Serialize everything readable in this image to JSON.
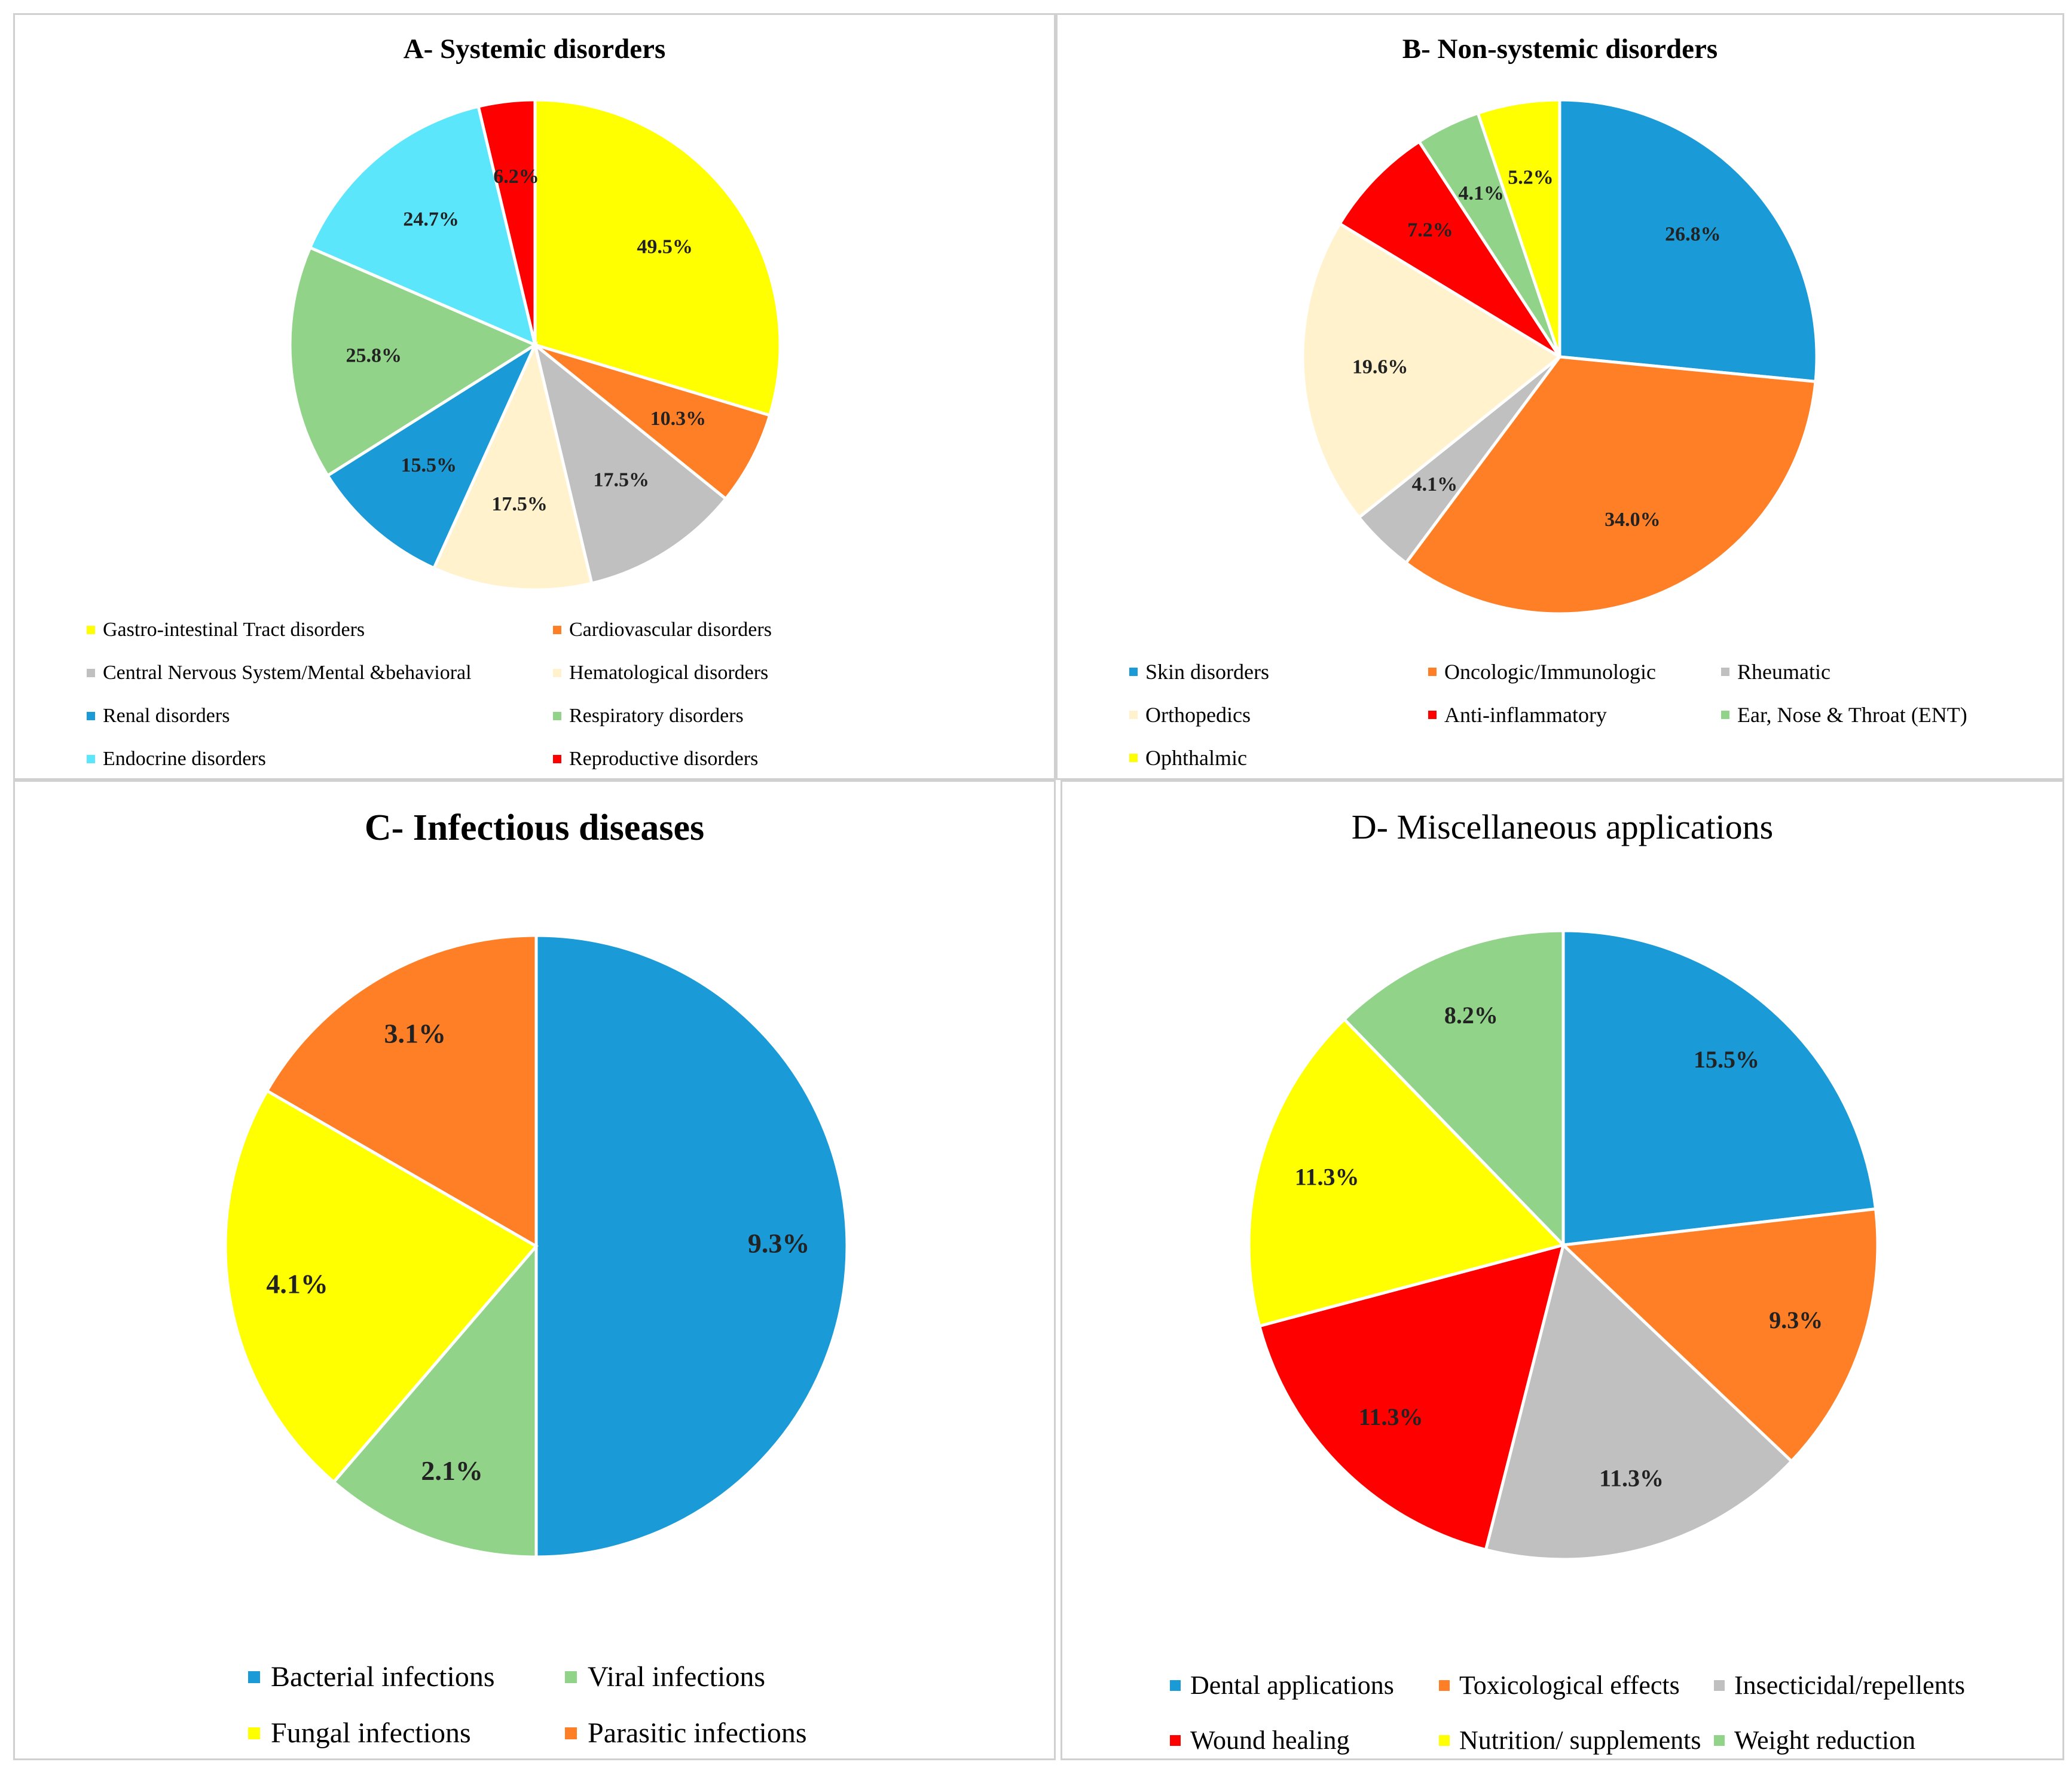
{
  "chart_data": [
    {
      "type": "pie",
      "title": "A- Systemic disorders",
      "legend_placement": "bottom",
      "categories": [
        "Gastro-intestinal Tract disorders",
        "Cardiovascular disorders",
        "Central Nervous System/Mental &behavioral",
        "Hematological disorders",
        "Renal disorders",
        "Respiratory disorders",
        "Endocrine disorders",
        "Reproductive disorders"
      ],
      "values": [
        49.5,
        10.3,
        17.5,
        17.5,
        15.5,
        25.8,
        24.7,
        6.2
      ],
      "labels": [
        "49.5%",
        "10.3%",
        "17.5%",
        "17.5%",
        "15.5%",
        "25.8%",
        "24.7%",
        "6.2%"
      ],
      "colors": [
        "#ffff00",
        "#ff7f27",
        "#c0c0c0",
        "#fff2cc",
        "#1a9ad6",
        "#92d38a",
        "#5ce6fb",
        "#ff0000"
      ]
    },
    {
      "type": "pie",
      "title": "B- Non-systemic disorders",
      "legend_placement": "bottom",
      "categories": [
        "Skin disorders",
        "Oncologic/Immunologic",
        "Rheumatic",
        "Orthopedics",
        "Anti-inflammatory",
        "Ear, Nose & Throat (ENT)",
        "Ophthalmic"
      ],
      "values": [
        26.8,
        34.0,
        4.1,
        19.6,
        7.2,
        4.1,
        5.2
      ],
      "labels": [
        "26.8%",
        "34.0%",
        "4.1%",
        "19.6%",
        "7.2%",
        "4.1%",
        "5.2%"
      ],
      "colors": [
        "#1a9ad6",
        "#ff7f27",
        "#c0c0c0",
        "#fff2cc",
        "#ff0000",
        "#92d38a",
        "#ffff00"
      ]
    },
    {
      "type": "pie",
      "title": "C- Infectious diseases",
      "legend_placement": "bottom",
      "categories": [
        "Bacterial infections",
        "Viral infections",
        "Fungal infections",
        "Parasitic infections"
      ],
      "values": [
        9.3,
        2.1,
        4.1,
        3.1
      ],
      "labels": [
        "9.3%",
        "2.1%",
        "4.1%",
        "3.1%"
      ],
      "colors": [
        "#1a9ad6",
        "#92d38a",
        "#ffff00",
        "#ff7f27"
      ]
    },
    {
      "type": "pie",
      "title": "D- Miscellaneous  applications",
      "legend_placement": "bottom",
      "categories": [
        "Dental applications",
        "Toxicological effects",
        "Insecticidal/repellents",
        "Wound healing",
        "Nutrition/ supplements",
        "Weight  reduction"
      ],
      "values": [
        15.5,
        9.3,
        11.3,
        11.3,
        11.3,
        8.2
      ],
      "labels": [
        "15.5%",
        "9.3%",
        "11.3%",
        "11.3%",
        "11.3%",
        "8.2%"
      ],
      "colors": [
        "#1a9ad6",
        "#ff7f27",
        "#c0c0c0",
        "#ff0000",
        "#ffff00",
        "#92d38a"
      ]
    }
  ]
}
